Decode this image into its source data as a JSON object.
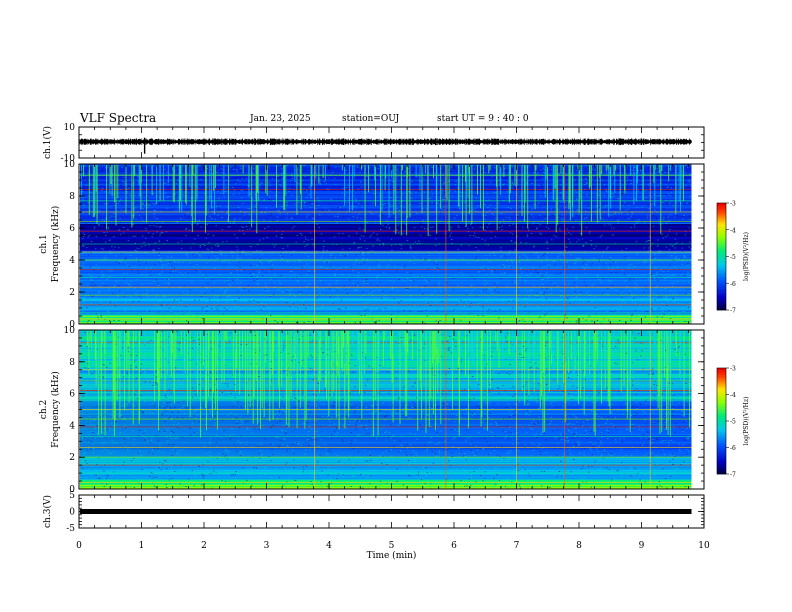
{
  "header": {
    "title": "VLF Spectra",
    "date": "Jan. 23, 2025",
    "station": "station=OUJ",
    "start": "start  UT =   9 : 40 : 0"
  },
  "chart_data": [
    {
      "type": "line",
      "panel": "ch1-waveform",
      "ylabel": "ch.1(V)",
      "ylim": [
        -10,
        10
      ],
      "yticks": [
        "10",
        "-10"
      ],
      "x_range_min": [
        0,
        10
      ],
      "signal_end_min": 9.8,
      "baseline_v": 0.5,
      "spike_min": 1.05
    },
    {
      "type": "heatmap",
      "panel": "ch1-spectrogram",
      "ylabel": "ch.1",
      "ylabel2": "Frequency (kHz)",
      "ylim": [
        0,
        10
      ],
      "yticks": [
        "0",
        "2",
        "4",
        "6",
        "8",
        "10"
      ],
      "data_end_min": 9.8,
      "colorbar": {
        "label": "log(PSD)(V²/Hz)",
        "range": [
          -7,
          -3
        ],
        "ticks": [
          "-3",
          "-4",
          "-5",
          "-6",
          "-7"
        ]
      }
    },
    {
      "type": "heatmap",
      "panel": "ch2-spectrogram",
      "ylabel": "ch.2",
      "ylabel2": "Frequency (kHz)",
      "ylim": [
        0,
        10
      ],
      "yticks": [
        "0",
        "2",
        "4",
        "6",
        "8",
        "10"
      ],
      "data_end_min": 9.8,
      "colorbar": {
        "label": "log(PSD)(V²/Hz)",
        "range": [
          -7,
          -3
        ],
        "ticks": [
          "-3",
          "-4",
          "-5",
          "-6",
          "-7"
        ]
      }
    },
    {
      "type": "line",
      "panel": "ch3-waveform",
      "ylabel": "ch.3(V)",
      "ylim": [
        -5,
        5
      ],
      "yticks": [
        "5",
        "0",
        "-5"
      ],
      "signal_end_min": 9.8,
      "baseline_v": 0,
      "xlabel": "Time  (min)",
      "xlim": [
        0,
        10
      ],
      "xticks": [
        "0",
        "1",
        "2",
        "3",
        "4",
        "5",
        "6",
        "7",
        "8",
        "9",
        "10"
      ]
    }
  ]
}
